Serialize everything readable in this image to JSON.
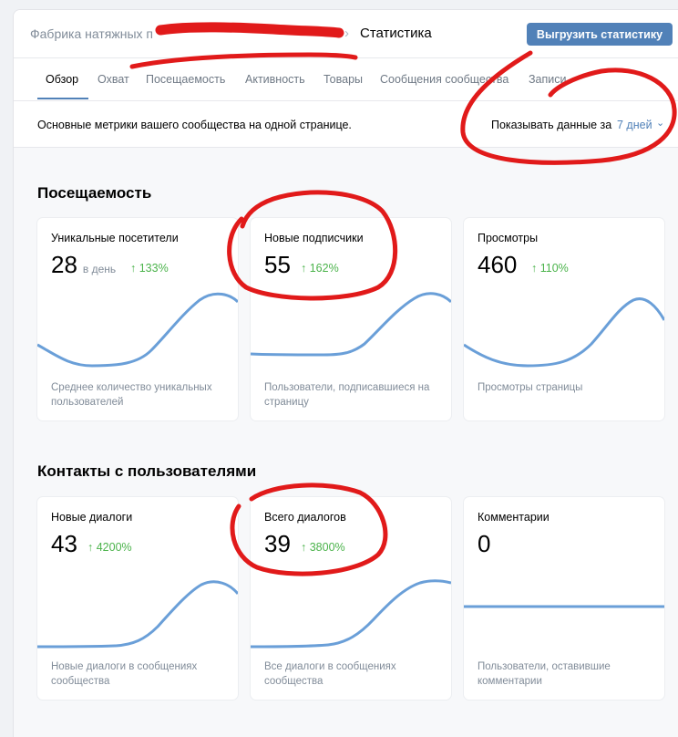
{
  "header": {
    "breadcrumb_root": "Фабрика натяжных п",
    "breadcrumb_separator": "›",
    "breadcrumb_current": "Статистика",
    "export_button": "Выгрузить статистику"
  },
  "tabs": [
    {
      "label": "Обзор",
      "active": true
    },
    {
      "label": "Охват",
      "active": false
    },
    {
      "label": "Посещаемость",
      "active": false
    },
    {
      "label": "Активность",
      "active": false
    },
    {
      "label": "Товары",
      "active": false
    },
    {
      "label": "Сообщения сообщества",
      "active": false
    },
    {
      "label": "Записи",
      "active": false
    }
  ],
  "subbar": {
    "description": "Основные метрики вашего сообщества на одной странице.",
    "period_label": "Показывать данные за",
    "period_value": "7 дней",
    "chevron_icon": "chevron-down-icon"
  },
  "sections": [
    {
      "title": "Посещаемость",
      "cards": [
        {
          "title": "Уникальные посетители",
          "value": "28",
          "unit": "в день",
          "delta": "133%",
          "desc": "Среднее количество уникальных пользователей"
        },
        {
          "title": "Новые подписчики",
          "value": "55",
          "unit": "",
          "delta": "162%",
          "desc": "Пользователи, подписавшиеся на страницу"
        },
        {
          "title": "Просмотры",
          "value": "460",
          "unit": "",
          "delta": "110%",
          "desc": "Просмотры страницы"
        }
      ]
    },
    {
      "title": "Контакты с пользователями",
      "cards": [
        {
          "title": "Новые диалоги",
          "value": "43",
          "unit": "",
          "delta": "4200%",
          "desc": "Новые диалоги в сообщениях сообщества"
        },
        {
          "title": "Всего диалогов",
          "value": "39",
          "unit": "",
          "delta": "3800%",
          "desc": "Все диалоги в сообщениях сообщества"
        },
        {
          "title": "Комментарии",
          "value": "0",
          "unit": "",
          "delta": "",
          "desc": "Пользователи, оставившие комментарии"
        }
      ]
    }
  ],
  "colors": {
    "accent": "#5181b8",
    "positive": "#4bb34b",
    "chart_line": "#6a9fd8",
    "annotation": "#e11a1a"
  }
}
